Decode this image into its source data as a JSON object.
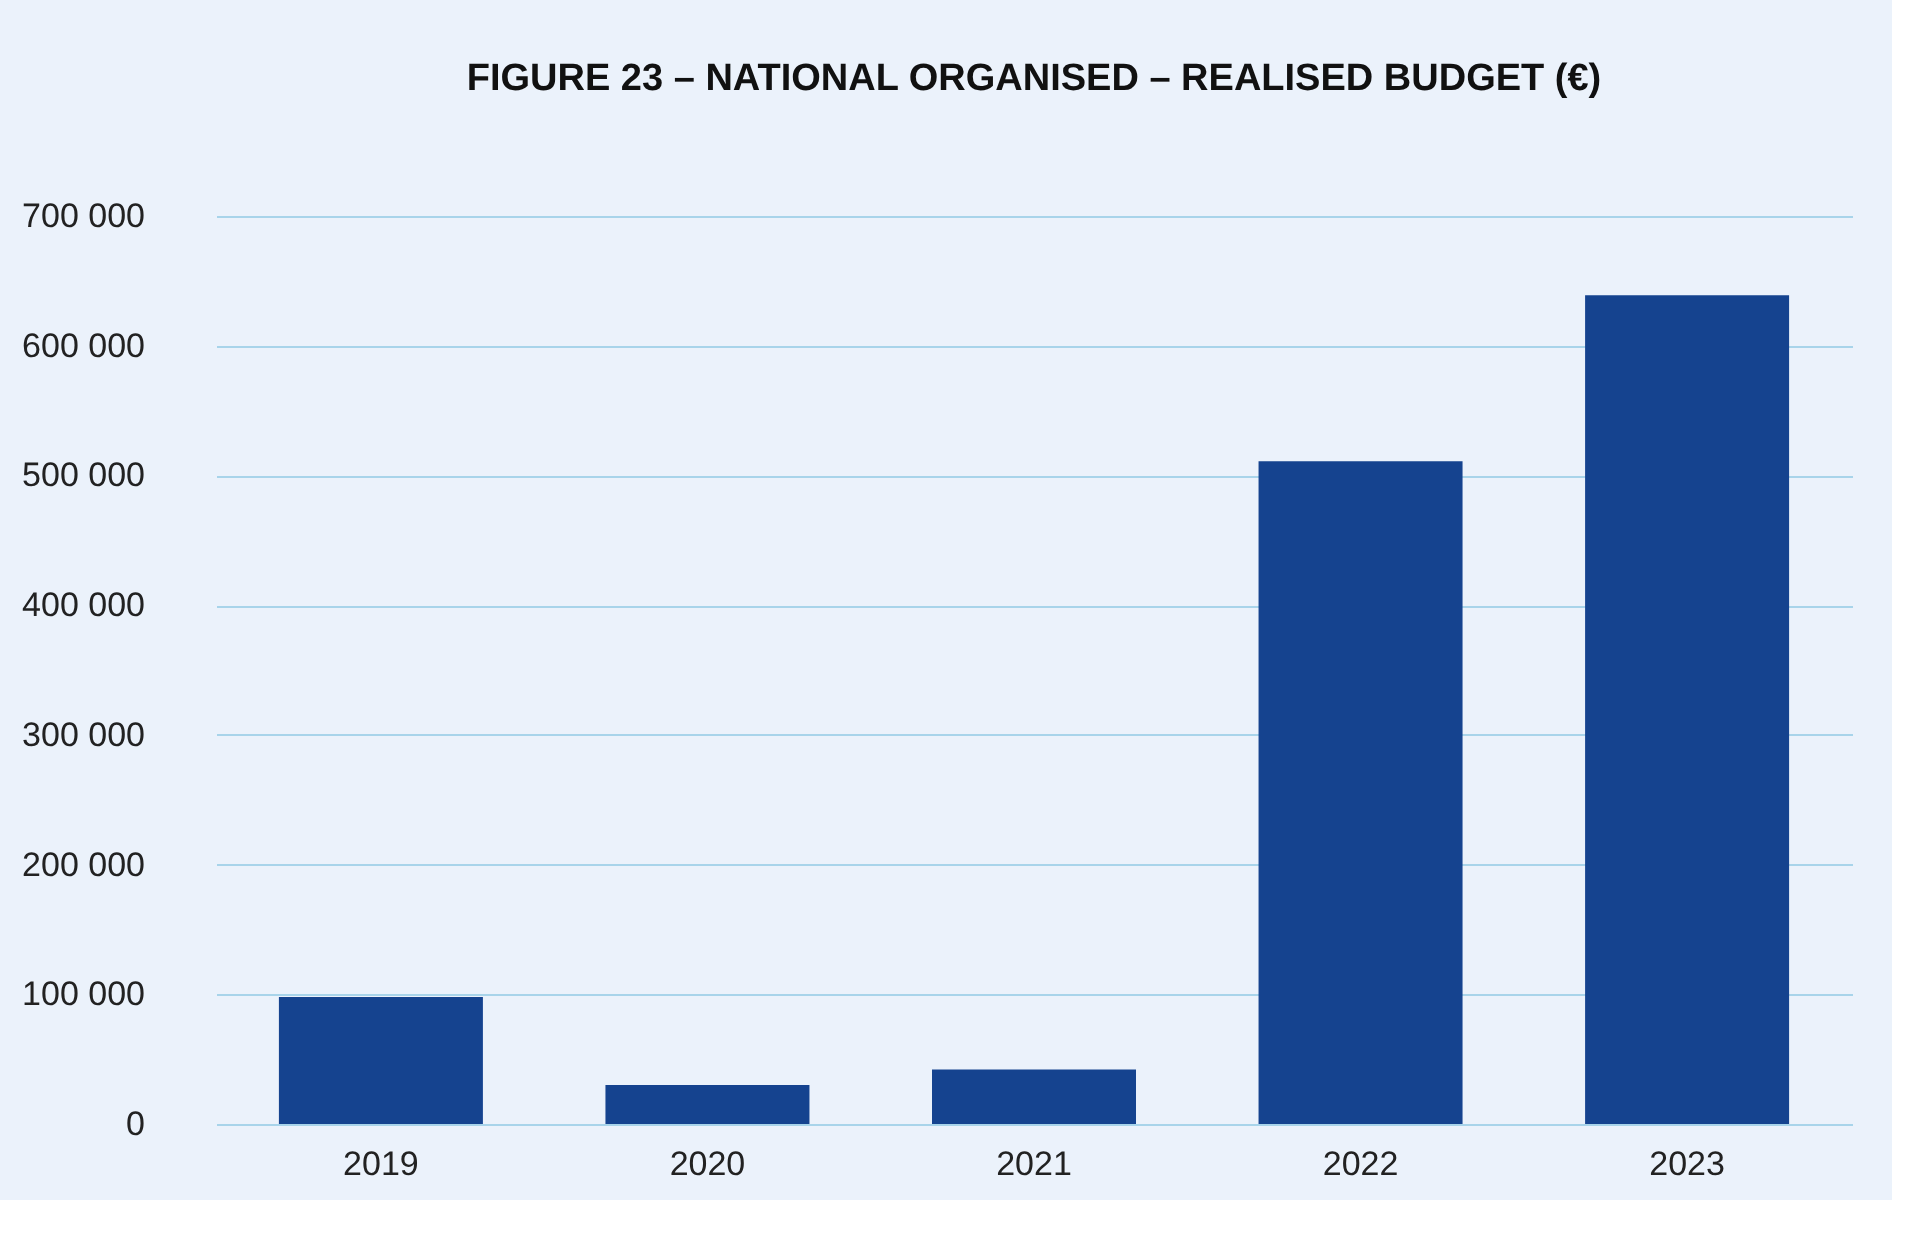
{
  "chart_data": {
    "type": "bar",
    "title": "FIGURE 23 – NATIONAL ORGANISED – REALISED BUDGET (€)",
    "categories": [
      "2019",
      "2020",
      "2021",
      "2022",
      "2023"
    ],
    "values": [
      98000,
      30000,
      42000,
      511000,
      639000
    ],
    "color": "#15438f",
    "ylim": [
      0,
      700000
    ],
    "yticks": [
      0,
      {
        "value": 100000,
        "label": "100 000"
      },
      {
        "value": 200000,
        "label": "200 000"
      },
      {
        "value": 300000,
        "label": "300 000"
      },
      {
        "value": 400000,
        "label": "400 000"
      },
      {
        "value": 500000,
        "label": "500 000"
      },
      {
        "value": 600000,
        "label": "600 000"
      },
      {
        "value": 700000,
        "label": "700 000"
      }
    ],
    "grid": "y"
  }
}
